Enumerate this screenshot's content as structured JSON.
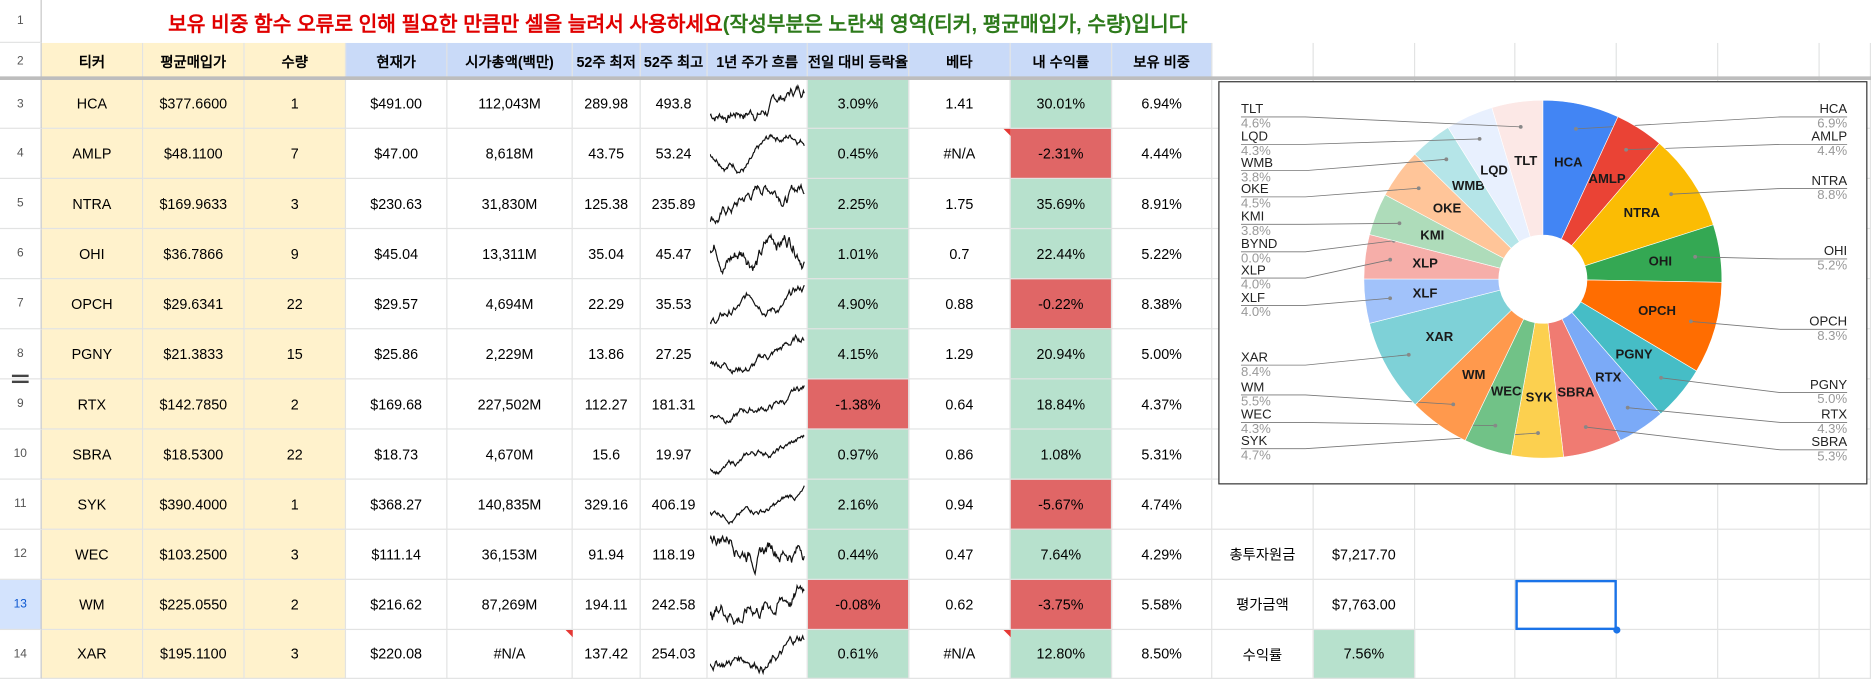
{
  "sheet": {
    "row_numbers": [
      "1",
      "2",
      "3",
      "4",
      "5",
      "6",
      "7",
      "8",
      "9",
      "10",
      "11",
      "12",
      "13",
      "14"
    ],
    "title": "보유 비중 함수 오류로 인해 필요한 만큼만 셀을 늘려서 사용하세요",
    "title_note": "(작성부분은 노란색 영역(티커, 평균매입가, 수량)입니다",
    "headers": [
      "티커",
      "평균매입가",
      "수량",
      "현재가",
      "시가총액(백만)",
      "52주 최저",
      "52주 최고",
      "1년 주가 흐름",
      "전일 대비 등락율",
      "베타",
      "내 수익률",
      "보유 비중"
    ],
    "rows": [
      [
        "HCA",
        "$377.6600",
        "1",
        "$491.00",
        "112,043M",
        "289.98",
        "493.8",
        "3.09%",
        "1.41",
        "30.01%",
        "6.94%"
      ],
      [
        "AMLP",
        "$48.1100",
        "7",
        "$47.00",
        "8,618M",
        "43.75",
        "53.24",
        "0.45%",
        "#N/A",
        "-2.31%",
        "4.44%"
      ],
      [
        "NTRA",
        "$169.9633",
        "3",
        "$230.63",
        "31,830M",
        "125.38",
        "235.89",
        "2.25%",
        "1.75",
        "35.69%",
        "8.91%"
      ],
      [
        "OHI",
        "$36.7866",
        "9",
        "$45.04",
        "13,311M",
        "35.04",
        "45.47",
        "1.01%",
        "0.7",
        "22.44%",
        "5.22%"
      ],
      [
        "OPCH",
        "$29.6341",
        "22",
        "$29.57",
        "4,694M",
        "22.29",
        "35.53",
        "4.90%",
        "0.88",
        "-0.22%",
        "8.38%"
      ],
      [
        "PGNY",
        "$21.3833",
        "15",
        "$25.86",
        "2,229M",
        "13.86",
        "27.25",
        "4.15%",
        "1.29",
        "20.94%",
        "5.00%"
      ],
      [
        "RTX",
        "$142.7850",
        "2",
        "$169.68",
        "227,502M",
        "112.27",
        "181.31",
        "-1.38%",
        "0.64",
        "18.84%",
        "4.37%"
      ],
      [
        "SBRA",
        "$18.5300",
        "22",
        "$18.73",
        "4,670M",
        "15.6",
        "19.97",
        "0.97%",
        "0.86",
        "1.08%",
        "5.31%"
      ],
      [
        "SYK",
        "$390.4000",
        "1",
        "$368.27",
        "140,835M",
        "329.16",
        "406.19",
        "2.16%",
        "0.94",
        "-5.67%",
        "4.74%"
      ],
      [
        "WEC",
        "$103.2500",
        "3",
        "$111.14",
        "36,153M",
        "91.94",
        "118.19",
        "0.44%",
        "0.47",
        "7.64%",
        "4.29%"
      ],
      [
        "WM",
        "$225.0550",
        "2",
        "$216.62",
        "87,269M",
        "194.11",
        "242.58",
        "-0.08%",
        "0.62",
        "-3.75%",
        "5.58%"
      ],
      [
        "XAR",
        "$195.1100",
        "3",
        "$220.08",
        "#N/A",
        "137.42",
        "254.03",
        "0.61%",
        "#N/A",
        "12.80%",
        "8.50%"
      ]
    ],
    "summary": [
      [
        "총투자원금",
        "$7,217.70"
      ],
      [
        "평가금액",
        "$7,763.00"
      ],
      [
        "수익률",
        "7.56%"
      ]
    ]
  },
  "chart_data": {
    "type": "pie",
    "categories": [
      "HCA",
      "AMLP",
      "NTRA",
      "OHI",
      "OPCH",
      "PGNY",
      "RTX",
      "SBRA",
      "SYK",
      "WEC",
      "WM",
      "XAR",
      "XLF",
      "XLP",
      "BYND",
      "KMI",
      "OKE",
      "WMB",
      "LQD",
      "TLT"
    ],
    "values": [
      6.9,
      4.4,
      8.8,
      5.2,
      8.3,
      5.0,
      4.3,
      5.3,
      4.7,
      4.3,
      5.5,
      8.4,
      4.0,
      4.0,
      0.0,
      3.8,
      4.5,
      3.8,
      4.3,
      4.6
    ],
    "value_labels": [
      "6.9%",
      "4.4%",
      "8.8%",
      "5.2%",
      "8.3%",
      "5.0%",
      "4.3%",
      "5.3%",
      "4.7%",
      "4.3%",
      "5.5%",
      "8.4%",
      "4.0%",
      "4.0%",
      "0.0%",
      "3.8%",
      "4.5%",
      "3.8%",
      "4.3%",
      "4.6%"
    ],
    "colors": [
      "#4285f4",
      "#ea4335",
      "#fbbc04",
      "#34a853",
      "#ff6d01",
      "#46bdc6",
      "#7baaf7",
      "#f07b72",
      "#fcd04f",
      "#71c287",
      "#ff994d",
      "#7ed1d7",
      "#a1c2fa",
      "#f6aea9",
      "#fde49b",
      "#aedcba",
      "#ffc599",
      "#b5e5e8",
      "#e8f0fe",
      "#fce8e6"
    ],
    "donut": true
  }
}
